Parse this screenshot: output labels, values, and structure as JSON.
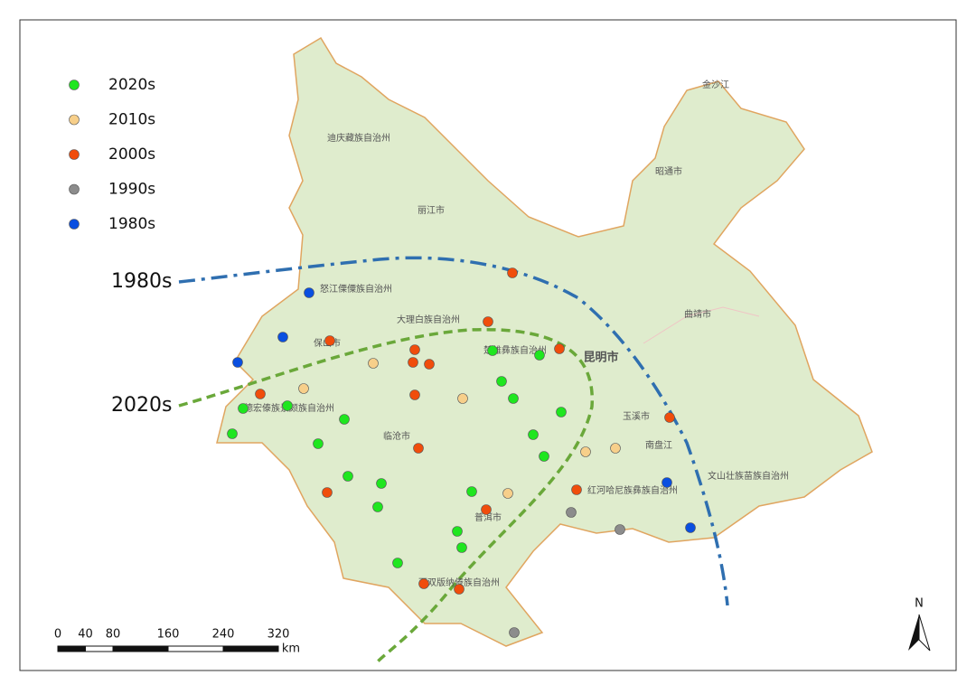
{
  "legend": [
    {
      "label": "2020s",
      "color": "#1fe61f"
    },
    {
      "label": "2010s",
      "color": "#f7cf8a"
    },
    {
      "label": "2000s",
      "color": "#f04d0c"
    },
    {
      "label": "1990s",
      "color": "#8c8c8c"
    },
    {
      "label": "1980s",
      "color": "#0a4fe0"
    }
  ],
  "boundaries": [
    {
      "label": "1980s",
      "color": "#2f6fb0"
    },
    {
      "label": "2020s",
      "color": "#6aa83a"
    }
  ],
  "places": [
    "迪庆藏族自治州",
    "丽江市",
    "怒江傈僳族自治州",
    "大理白族自治州",
    "保山市",
    "楚雄彝族自治州",
    "昆明市",
    "德宏傣族景颇族自治州",
    "临沧市",
    "玉溪市",
    "南盘江",
    "文山壮族苗族自治州",
    "红河哈尼族彝族自治州",
    "普洱市",
    "西双版纳傣族自治州",
    "昭通市",
    "曲靖市",
    "金沙江"
  ],
  "scale_bar": {
    "ticks": [
      0,
      40,
      80,
      160,
      240,
      320
    ],
    "unit": "km"
  },
  "north_arrow": "N"
}
